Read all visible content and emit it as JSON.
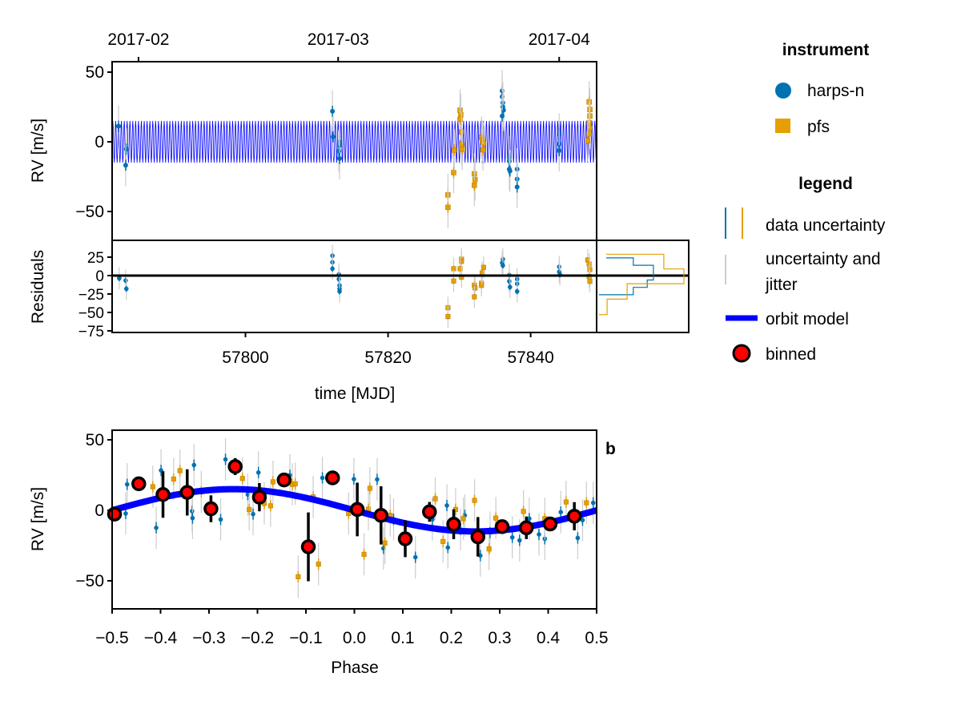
{
  "colors": {
    "harps_n": "#0072b2",
    "pfs": "#e69f00",
    "model": "#0000ff",
    "jitter": "#cccccc",
    "binned_fill": "#ff0000",
    "binned_edge": "#000000"
  },
  "chart_data": [
    {
      "id": "timeseries",
      "type": "scatter",
      "ylabel": "RV [m/s]",
      "xlim": [
        57781.3,
        57849.25
      ],
      "ylim": [
        -70.7,
        57.5
      ],
      "yticks": [
        {
          "v": 50,
          "label": "50"
        },
        {
          "v": 0,
          "label": "0"
        },
        {
          "v": -50,
          "label": "−50"
        }
      ],
      "top_ticks": [
        {
          "v": 57785,
          "label": "2017-02"
        },
        {
          "v": 57813,
          "label": "2017-03"
        },
        {
          "v": 57844,
          "label": "2017-04"
        }
      ],
      "model": {
        "name": "orbit model",
        "K": 15,
        "period_days": 0.4
      },
      "data_err": 4,
      "jitter_err": 15,
      "series": [
        {
          "name": "harps-n",
          "marker": "circle",
          "points": [
            [
              57782.2,
              11.2
            ],
            [
              57783.3,
              -5.3
            ],
            [
              57783.2,
              -16.8
            ],
            [
              57812.2,
              21.9
            ],
            [
              57812.3,
              3.6
            ],
            [
              57813.2,
              0
            ],
            [
              57813.2,
              -2.5
            ],
            [
              57813.1,
              -6.7
            ],
            [
              57813.2,
              -12
            ],
            [
              57836.0,
              36.6
            ],
            [
              57836.0,
              32.4
            ],
            [
              57836.1,
              28
            ],
            [
              57836.1,
              25.1
            ],
            [
              57836.2,
              22.7
            ],
            [
              57836.0,
              18.5
            ],
            [
              57837.0,
              -11
            ],
            [
              57837.0,
              -13.9
            ],
            [
              57837.0,
              -19.6
            ],
            [
              57837.1,
              -21
            ],
            [
              57838.1,
              -19.6
            ],
            [
              57838.1,
              -26.7
            ],
            [
              57838.1,
              -32.4
            ],
            [
              57844.0,
              5.5
            ],
            [
              57844.0,
              -1.5
            ],
            [
              57844.0,
              -6.3
            ]
          ]
        },
        {
          "name": "pfs",
          "marker": "square",
          "points": [
            [
              57828.4,
              -38.1
            ],
            [
              57828.4,
              -47
            ],
            [
              57829.2,
              -22.1
            ],
            [
              57829.3,
              -5.9
            ],
            [
              57830.1,
              22.7
            ],
            [
              57830.2,
              19.4
            ],
            [
              57830.1,
              16.2
            ],
            [
              57830.3,
              7
            ],
            [
              57830.3,
              -1.9
            ],
            [
              57830.4,
              -5.3
            ],
            [
              57832.1,
              -23
            ],
            [
              57832.2,
              -27.2
            ],
            [
              57832.1,
              -31.2
            ],
            [
              57833.1,
              3.2
            ],
            [
              57833.2,
              0.8
            ],
            [
              57833.4,
              -1
            ],
            [
              57833.3,
              -5.7
            ],
            [
              57848.2,
              28.6
            ],
            [
              57848.3,
              23.2
            ],
            [
              57848.3,
              18.5
            ],
            [
              57848.2,
              13.7
            ],
            [
              57848.3,
              9.9
            ],
            [
              57848.2,
              5.7
            ],
            [
              57848.0,
              0.8
            ]
          ]
        }
      ]
    },
    {
      "id": "residuals",
      "type": "scatter",
      "xlabel": "time [MJD]",
      "ylabel": "Residuals",
      "xlim": [
        57781.3,
        57849.25
      ],
      "ylim": [
        -77.2,
        47.8
      ],
      "xticks": [
        {
          "v": 57800,
          "label": "57800"
        },
        {
          "v": 57820,
          "label": "57820"
        },
        {
          "v": 57840,
          "label": "57840"
        }
      ],
      "yticks": [
        {
          "v": 25,
          "label": "25"
        },
        {
          "v": 0,
          "label": "0"
        },
        {
          "v": -25,
          "label": "−25"
        },
        {
          "v": -50,
          "label": "−50"
        },
        {
          "v": -75,
          "label": "−75"
        }
      ],
      "zero_line": 0,
      "series": [
        {
          "name": "harps-n",
          "points": [
            [
              57782.3,
              -3.7
            ],
            [
              57783.2,
              -6.7
            ],
            [
              57783.3,
              -18
            ],
            [
              57812.2,
              27
            ],
            [
              57812.2,
              18.1
            ],
            [
              57812.2,
              9.3
            ],
            [
              57813.1,
              1.5
            ],
            [
              57813.1,
              -4.8
            ],
            [
              57813.2,
              -13.3
            ],
            [
              57813.2,
              -17.8
            ],
            [
              57813.2,
              -21.5
            ],
            [
              57836.1,
              22.2
            ],
            [
              57836.0,
              17.4
            ],
            [
              57836.1,
              13.7
            ],
            [
              57837.0,
              0.7
            ],
            [
              57837.0,
              -7.8
            ],
            [
              57837.1,
              -15.6
            ],
            [
              57838.1,
              -4.8
            ],
            [
              57838.1,
              -11.1
            ],
            [
              57838.1,
              -21.5
            ],
            [
              57844.0,
              11.9
            ],
            [
              57844.0,
              5.2
            ],
            [
              57844.1,
              1.5
            ]
          ]
        },
        {
          "name": "pfs",
          "points": [
            [
              57828.4,
              -43.7
            ],
            [
              57828.4,
              -55.6
            ],
            [
              57829.2,
              9.3
            ],
            [
              57829.2,
              -7.4
            ],
            [
              57830.3,
              22.2
            ],
            [
              57830.3,
              19.3
            ],
            [
              57830.1,
              9.3
            ],
            [
              57830.3,
              -2.2
            ],
            [
              57832.1,
              -13
            ],
            [
              57832.2,
              -16.7
            ],
            [
              57832.1,
              -28.9
            ],
            [
              57833.1,
              -10.4
            ],
            [
              57833.1,
              -13.3
            ],
            [
              57833.2,
              3.7
            ],
            [
              57833.4,
              11.1
            ],
            [
              57848.0,
              21.1
            ],
            [
              57848.2,
              15.6
            ],
            [
              57848.3,
              8.1
            ],
            [
              57848.2,
              -1.1
            ],
            [
              57848.3,
              -7.8
            ]
          ]
        }
      ],
      "histograms": [
        {
          "name": "harps-n",
          "edges": [
            -26,
            -16,
            -6,
            14,
            24
          ],
          "relative_counts": [
            0.42,
            0.58,
            0.65,
            0.42
          ]
        },
        {
          "name": "pfs",
          "edges": [
            -53,
            -32,
            -11,
            9,
            29
          ],
          "relative_counts": [
            0.12,
            0.35,
            1.0,
            0.77
          ]
        }
      ]
    },
    {
      "id": "phase",
      "type": "scatter",
      "panel_label": "b",
      "xlabel": "Phase",
      "ylabel": "RV [m/s]",
      "xlim": [
        -0.5,
        0.5
      ],
      "ylim": [
        -69.9,
        56.8
      ],
      "xticks": [
        {
          "v": -0.5,
          "label": "−0.5"
        },
        {
          "v": -0.4,
          "label": "−0.4"
        },
        {
          "v": -0.3,
          "label": "−0.3"
        },
        {
          "v": -0.2,
          "label": "−0.2"
        },
        {
          "v": -0.1,
          "label": "−0.1"
        },
        {
          "v": 0,
          "label": "0.0"
        },
        {
          "v": 0.1,
          "label": "0.1"
        },
        {
          "v": 0.2,
          "label": "0.2"
        },
        {
          "v": 0.3,
          "label": "0.3"
        },
        {
          "v": 0.4,
          "label": "0.4"
        },
        {
          "v": 0.5,
          "label": "0.5"
        }
      ],
      "yticks": [
        {
          "v": 50,
          "label": "50"
        },
        {
          "v": 0,
          "label": "0"
        },
        {
          "v": -50,
          "label": "−50"
        }
      ],
      "model": {
        "name": "orbit model",
        "K": 15,
        "form": "-K*sin(2*pi*phase)"
      },
      "data_err": 4,
      "jitter_err": 15,
      "series": [
        {
          "name": "harps-n",
          "points": [
            [
              -0.469,
              18.4
            ],
            [
              -0.472,
              -2.3
            ],
            [
              -0.409,
              -12.4
            ],
            [
              -0.399,
              28.3
            ],
            [
              -0.335,
              -0.6
            ],
            [
              -0.334,
              -5.5
            ],
            [
              -0.331,
              32.1
            ],
            [
              -0.276,
              -6.5
            ],
            [
              -0.266,
              36.1
            ],
            [
              -0.22,
              11.2
            ],
            [
              -0.209,
              -2.7
            ],
            [
              -0.198,
              26.8
            ],
            [
              -0.133,
              24.9
            ],
            [
              -0.066,
              23.0
            ],
            [
              -0.001,
              22.1
            ],
            [
              0.047,
              21.9
            ],
            [
              0.06,
              -27.0
            ],
            [
              0.081,
              -6.5
            ],
            [
              0.126,
              -33.3
            ],
            [
              0.161,
              -6.5
            ],
            [
              0.191,
              3.4
            ],
            [
              0.193,
              -26.4
            ],
            [
              0.219,
              -13.5
            ],
            [
              0.228,
              -3.6
            ],
            [
              0.26,
              -32.1
            ],
            [
              0.28,
              -15.8
            ],
            [
              0.326,
              -19.2
            ],
            [
              0.341,
              -21.3
            ],
            [
              0.361,
              -5.9
            ],
            [
              0.381,
              -17.1
            ],
            [
              0.393,
              -20.2
            ],
            [
              0.426,
              -1.3
            ],
            [
              0.461,
              -19.6
            ],
            [
              0.471,
              -7.0
            ],
            [
              0.493,
              5.3
            ]
          ]
        },
        {
          "name": "pfs",
          "points": [
            [
              -0.416,
              16.7
            ],
            [
              -0.373,
              22.2
            ],
            [
              -0.36,
              28.1
            ],
            [
              -0.316,
              13.1
            ],
            [
              -0.231,
              22.6
            ],
            [
              -0.217,
              0.6
            ],
            [
              -0.186,
              4.9
            ],
            [
              -0.173,
              3.2
            ],
            [
              -0.168,
              20.2
            ],
            [
              -0.128,
              18.4
            ],
            [
              -0.122,
              18.8
            ],
            [
              -0.116,
              -47.1
            ],
            [
              -0.085,
              9.5
            ],
            [
              -0.074,
              -38.2
            ],
            [
              -0.012,
              -2.3
            ],
            [
              0.02,
              -31.2
            ],
            [
              0.029,
              0.8
            ],
            [
              0.032,
              15.6
            ],
            [
              0.063,
              -23.2
            ],
            [
              0.074,
              -3.6
            ],
            [
              0.167,
              8.2
            ],
            [
              0.183,
              -22.1
            ],
            [
              0.209,
              0.6
            ],
            [
              0.225,
              -5.9
            ],
            [
              0.248,
              7.0
            ],
            [
              0.278,
              -27.4
            ],
            [
              0.292,
              -5.5
            ],
            [
              0.349,
              -0.8
            ],
            [
              0.393,
              -5.9
            ],
            [
              0.437,
              5.9
            ],
            [
              0.479,
              5.3
            ]
          ]
        }
      ],
      "binned": [
        [
          -0.495,
          -2.7,
          0
        ],
        [
          -0.445,
          18.8,
          0
        ],
        [
          -0.395,
          11.2,
          16.5
        ],
        [
          -0.345,
          12.7,
          16.4
        ],
        [
          -0.296,
          1.1,
          9.5
        ],
        [
          -0.246,
          31,
          6
        ],
        [
          -0.196,
          9.3,
          10
        ],
        [
          -0.145,
          21.5,
          3
        ],
        [
          -0.095,
          -25.9,
          24.4
        ],
        [
          -0.045,
          23,
          3
        ],
        [
          0.006,
          0.6,
          19
        ],
        [
          0.055,
          -3.6,
          20.6
        ],
        [
          0.105,
          -20.2,
          13
        ],
        [
          0.155,
          -1.1,
          7
        ],
        [
          0.205,
          -9.9,
          10.6
        ],
        [
          0.255,
          -18.8,
          14
        ],
        [
          0.305,
          -11.6,
          4
        ],
        [
          0.355,
          -12.4,
          8
        ],
        [
          0.404,
          -9.7,
          4
        ],
        [
          0.454,
          -4.2,
          10
        ]
      ]
    }
  ],
  "legend": {
    "instrument_title": "instrument",
    "instruments": [
      "harps-n",
      "pfs"
    ],
    "legend_title": "legend",
    "data_uncertainty": "data uncertainty",
    "jitter_line1": "uncertainty and",
    "jitter_line2": "jitter",
    "orbit_model": "orbit model",
    "binned": "binned"
  }
}
